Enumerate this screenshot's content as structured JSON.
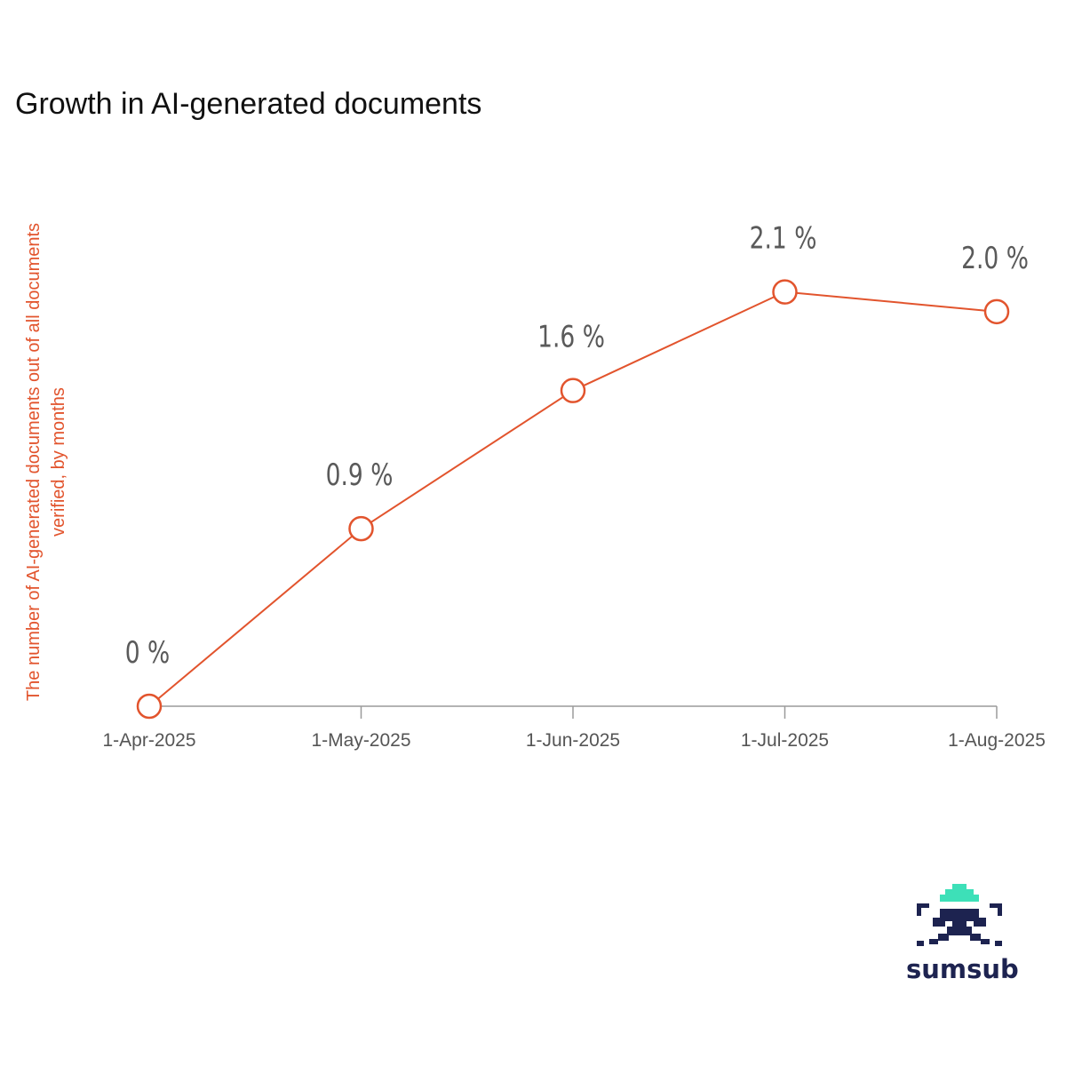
{
  "colors": {
    "line": "#e2542d",
    "axis": "#9a9a9a",
    "tick_text": "#555555",
    "data_label": "#5a5a5a",
    "brand_dark": "#1d2350",
    "brand_accent": "#3de0b8"
  },
  "chart_data": {
    "type": "line",
    "title": "Growth in AI-generated documents",
    "xlabel": "",
    "ylabel": "The number of AI-generated documents out of all documents verified, by months",
    "categories": [
      "1-Apr-2025",
      "1-May-2025",
      "1-Jun-2025",
      "1-Jul-2025",
      "1-Aug-2025"
    ],
    "values": [
      0,
      0.9,
      1.6,
      2.1,
      2.0
    ],
    "data_labels": [
      "0 %",
      "0.9 %",
      "1.6 %",
      "2.1 %",
      "2.0 %"
    ],
    "ylim": [
      0,
      2.4
    ],
    "grid": false,
    "marker": "hollow-circle"
  },
  "brand": {
    "name": "sumsub",
    "icon": "sumsub-logo-icon"
  }
}
